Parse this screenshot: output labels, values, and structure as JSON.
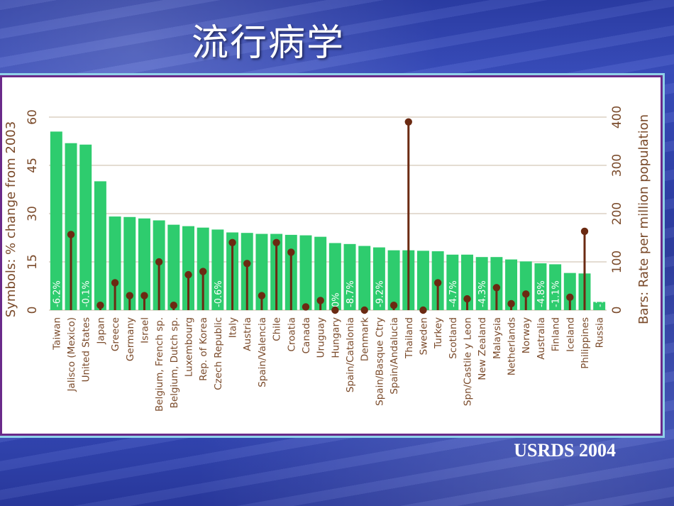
{
  "title": "流行病学",
  "source": "USRDS 2004",
  "colors": {
    "bar": "#2ecc6e",
    "symbol": "#6b2a12",
    "axis_text": "#7a4a2a",
    "grid": "#c9b9a6"
  },
  "chart_data": {
    "type": "bar",
    "left_axis_label": "Symbols: % change from 2003",
    "right_axis_label": "Bars: Rate per million population",
    "left_ticks": [
      0,
      15,
      30,
      45,
      60
    ],
    "right_ticks": [
      0,
      100,
      200,
      300,
      400
    ],
    "ylim_left": [
      0,
      60
    ],
    "ylim_right": [
      0,
      400
    ],
    "grid": true,
    "categories": [
      "Taiwan",
      "Jalisco (Mexico)",
      "United States",
      "Japan",
      "Greece",
      "Germany",
      "Israel",
      "Belgium, French sp.",
      "Belgium, Dutch sp.",
      "Luxembourg",
      "Rep. of Korea",
      "Czech Republic",
      "Italy",
      "Austria",
      "Spain/Valencia",
      "Chile",
      "Croatia",
      "Canada",
      "Uruguay",
      "Hungary",
      "Spain/Catalonia",
      "Denmark",
      "Spain/Basque Ctry",
      "Spain/Andalucia",
      "Thailand",
      "Sweden",
      "Turkey",
      "Scotland",
      "Spn/Castile y Leon",
      "New Zealand",
      "Malaysia",
      "Netherlands",
      "Norway",
      "Australia",
      "Finland",
      "Iceland",
      "Philippines",
      "Russia"
    ],
    "bars": [
      370,
      346,
      343,
      267,
      194,
      193,
      190,
      186,
      177,
      174,
      171,
      167,
      161,
      160,
      158,
      158,
      156,
      155,
      152,
      139,
      137,
      133,
      130,
      124,
      124,
      123,
      122,
      115,
      115,
      110,
      110,
      105,
      101,
      97,
      95,
      77,
      76,
      17
    ],
    "symbols": [
      -6.2,
      23.5,
      -0.1,
      1.5,
      8.5,
      4.5,
      4.5,
      15,
      1.5,
      11,
      12,
      -0.6,
      21,
      14.5,
      4.5,
      21,
      18,
      1,
      3,
      0,
      -8.7,
      0,
      -9.2,
      1.5,
      58.5,
      0,
      8.5,
      -4.7,
      3.5,
      -4.3,
      7,
      2,
      5,
      -4.8,
      -1.1,
      4,
      24.5,
      -10.2
    ],
    "negative_labels": [
      "-6.2%",
      "",
      "-0.1%",
      "",
      "",
      "",
      "",
      "",
      "",
      "",
      "",
      "-0.6%",
      "",
      "",
      "",
      "",
      "",
      "",
      "",
      "0%",
      "-8.7%",
      "",
      "-9.2%",
      "",
      "",
      "",
      "",
      "-4.7%",
      "",
      "-4.3%",
      "",
      "",
      "",
      "-4.8%",
      "-1.1%",
      "",
      "",
      "-10.2%"
    ]
  }
}
